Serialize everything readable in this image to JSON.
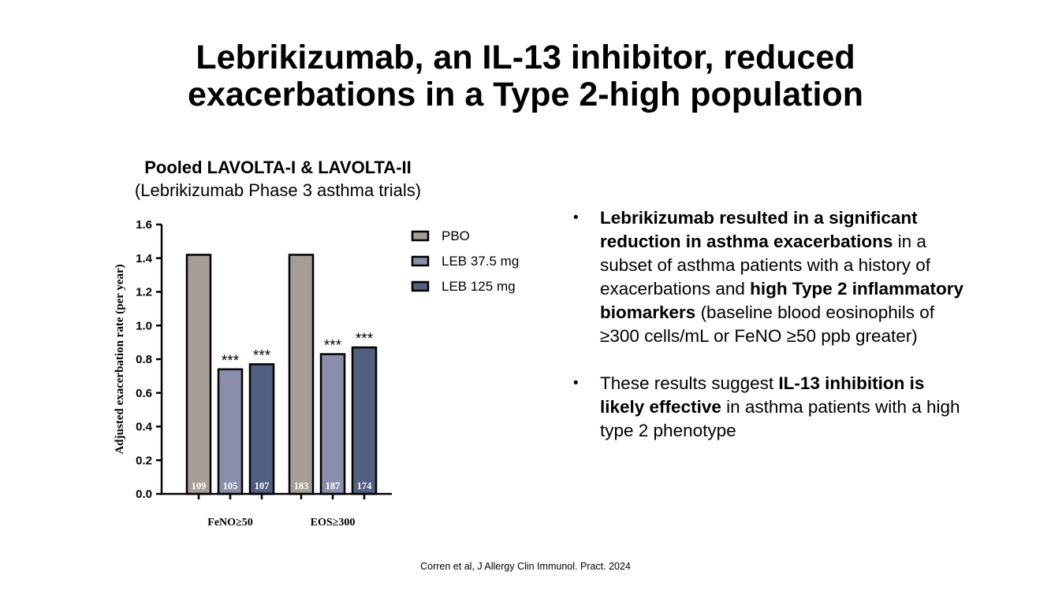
{
  "slide": {
    "title_line1": "Lebrikizumab, an IL-13 inhibitor, reduced",
    "title_line2": "exacerbations in a Type 2-high population",
    "chart_heading": "Pooled LAVOLTA-I & LAVOLTA-II",
    "chart_subheading": "(Lebrikizumab Phase 3 asthma trials)",
    "citation": "Corren et al, J Allergy Clin Immunol. Pract. 2024"
  },
  "bullets": [
    {
      "parts": [
        {
          "text": "Lebrikizumab resulted in a significant reduction in asthma exacerbations",
          "bold": true
        },
        {
          "text": " in a subset of asthma patients with a history of exacerbations and ",
          "bold": false
        },
        {
          "text": "high Type 2 inflammatory biomarkers",
          "bold": true
        },
        {
          "text": " (baseline blood eosinophils of ≥300 cells/mL or FeNO ≥50 ppb greater)",
          "bold": false
        }
      ]
    },
    {
      "parts": [
        {
          "text": "These results suggest ",
          "bold": false
        },
        {
          "text": "IL-13 inhibition is likely effective",
          "bold": true
        },
        {
          "text": " in asthma patients with a high type 2 phenotype",
          "bold": false
        }
      ]
    }
  ],
  "chart_data": {
    "type": "bar",
    "title": "",
    "ylabel": "Adjusted exacerbation rate (per year)",
    "xlabel": "",
    "ylim": [
      0,
      1.6
    ],
    "yticks": [
      "0.0",
      "0.2",
      "0.4",
      "0.6",
      "0.8",
      "1.0",
      "1.2",
      "1.4",
      "1.6"
    ],
    "categories": [
      "FeNO≥50",
      "EOS≥300"
    ],
    "legend_position": "top-right",
    "grid": false,
    "series": [
      {
        "name": "PBO",
        "color": "#a59d98",
        "values": [
          1.42,
          1.42
        ],
        "n": [
          "109",
          "183"
        ],
        "significance": [
          "",
          ""
        ]
      },
      {
        "name": "LEB 37.5 mg",
        "color": "#8a8eaa",
        "values": [
          0.74,
          0.83
        ],
        "n": [
          "105",
          "187"
        ],
        "significance": [
          "***",
          "***"
        ]
      },
      {
        "name": "LEB 125 mg",
        "color": "#525f80",
        "values": [
          0.77,
          0.87
        ],
        "n": [
          "107",
          "174"
        ],
        "significance": [
          "***",
          "***"
        ]
      }
    ]
  }
}
